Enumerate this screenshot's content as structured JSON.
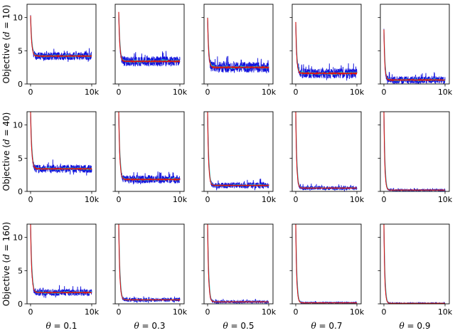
{
  "chart_data": {
    "type": "line",
    "layout": "grid",
    "rows": 3,
    "cols": 5,
    "x_ticks": [
      "0",
      "10k"
    ],
    "y_ticks": [
      "0",
      "5",
      "10"
    ],
    "xlim": [
      0,
      10000
    ],
    "ylim": [
      0,
      12
    ],
    "row_labels": [
      {
        "prefix": "Objective (",
        "var": "d",
        "suffix": " = 10)"
      },
      {
        "prefix": "Objective (",
        "var": "d",
        "suffix": " = 40)"
      },
      {
        "prefix": "Objective (",
        "var": "d",
        "suffix": " = 160)"
      }
    ],
    "col_labels": [
      {
        "var": "θ",
        "suffix": " = 0.1"
      },
      {
        "var": "θ",
        "suffix": " = 0.3"
      },
      {
        "var": "θ",
        "suffix": " = 0.5"
      },
      {
        "var": "θ",
        "suffix": " = 0.7"
      },
      {
        "var": "θ",
        "suffix": " = 0.9"
      }
    ],
    "series_colors": {
      "raw": "#1010dd",
      "smoothed": "#20c0c0",
      "mean": "#dd1010"
    },
    "panels": [
      {
        "row": 0,
        "col": 0,
        "initial": 10.3,
        "plateau": 4.2,
        "noise": 0.6
      },
      {
        "row": 0,
        "col": 1,
        "initial": 10.8,
        "plateau": 3.4,
        "noise": 0.75
      },
      {
        "row": 0,
        "col": 2,
        "initial": 10.0,
        "plateau": 2.5,
        "noise": 0.8
      },
      {
        "row": 0,
        "col": 3,
        "initial": 9.3,
        "plateau": 1.6,
        "noise": 0.75
      },
      {
        "row": 0,
        "col": 4,
        "initial": 8.2,
        "plateau": 0.6,
        "noise": 0.55
      },
      {
        "row": 1,
        "col": 0,
        "initial": 12,
        "plateau": 3.4,
        "noise": 0.6
      },
      {
        "row": 1,
        "col": 1,
        "initial": 12,
        "plateau": 1.8,
        "noise": 0.6
      },
      {
        "row": 1,
        "col": 2,
        "initial": 12,
        "plateau": 0.9,
        "noise": 0.45
      },
      {
        "row": 1,
        "col": 3,
        "initial": 12,
        "plateau": 0.5,
        "noise": 0.3
      },
      {
        "row": 1,
        "col": 4,
        "initial": 12,
        "plateau": 0.2,
        "noise": 0.15
      },
      {
        "row": 2,
        "col": 0,
        "initial": 12,
        "plateau": 1.7,
        "noise": 0.5
      },
      {
        "row": 2,
        "col": 1,
        "initial": 12,
        "plateau": 0.6,
        "noise": 0.3
      },
      {
        "row": 2,
        "col": 2,
        "initial": 12,
        "plateau": 0.3,
        "noise": 0.2
      },
      {
        "row": 2,
        "col": 3,
        "initial": 12,
        "plateau": 0.15,
        "noise": 0.12
      },
      {
        "row": 2,
        "col": 4,
        "initial": 12,
        "plateau": 0.08,
        "noise": 0.08
      }
    ]
  }
}
